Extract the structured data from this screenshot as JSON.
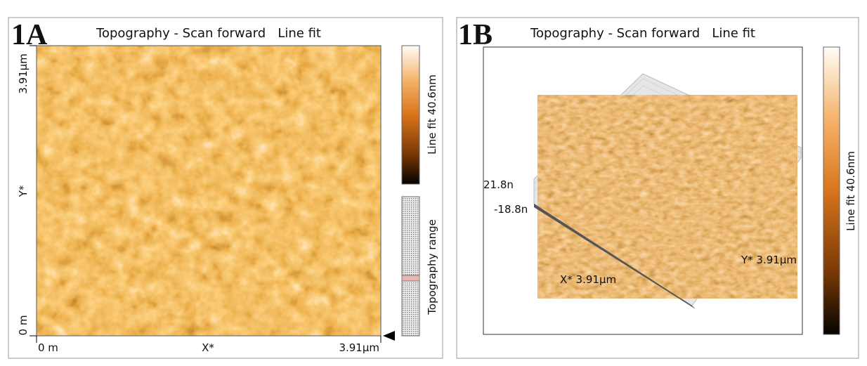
{
  "panels": [
    {
      "label": "1A",
      "title": "Topography - Scan forward   Line fit",
      "y_axis": {
        "top": "3.91µm",
        "middle": "Y*",
        "bottom": "0 m"
      },
      "x_axis": {
        "left": "0 m",
        "middle": "X*",
        "right": "3.91µm"
      },
      "colorbar_label": "Line fit 40.6nm",
      "range_label": "Topography range"
    },
    {
      "label": "1B",
      "title": "Topography - Scan forward   Line fit",
      "z_top": "21.8n",
      "z_bottom": "-18.8n",
      "x_axis_label": "X* 3.91µm",
      "y_axis_label": "Y* 3.91µm",
      "colorbar_label": "Line fit 40.6nm"
    }
  ]
}
